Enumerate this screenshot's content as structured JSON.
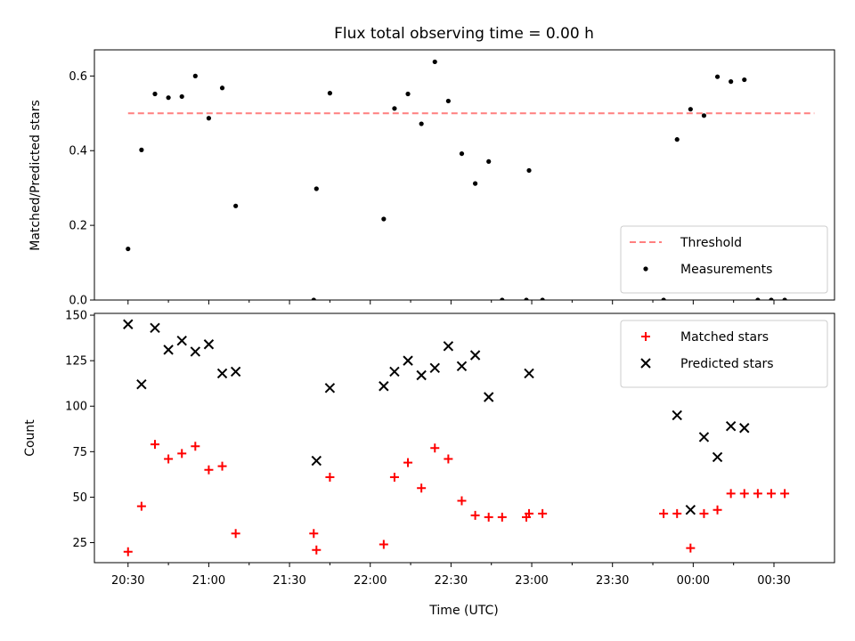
{
  "chart_data": {
    "type": "scatter",
    "title": "Flux total observing time = 0.00 h",
    "xlabel": "Time (UTC)",
    "x_ticks": [
      "20:30",
      "21:00",
      "21:30",
      "22:00",
      "22:30",
      "23:00",
      "23:30",
      "00:00",
      "00:30"
    ],
    "x_range_minutes_since_20_30": [
      -12.5,
      262.5
    ],
    "panels": [
      {
        "ylabel": "Matched/Predicted stars",
        "ylim": [
          0,
          0.67
        ],
        "y_ticks": [
          "0.0",
          "0.2",
          "0.4",
          "0.6"
        ],
        "legend_position": "lower-right",
        "threshold": {
          "name": "Threshold",
          "value": 0.5,
          "x_start": "20:30",
          "x_end": "00:45",
          "color": "#ff7f7f"
        },
        "series": [
          {
            "name": "Measurements",
            "marker": "dot",
            "color": "#000000",
            "points": [
              [
                "20:30",
                0.137
              ],
              [
                "20:35",
                0.402
              ],
              [
                "20:40",
                0.552
              ],
              [
                "20:45",
                0.542
              ],
              [
                "20:50",
                0.545
              ],
              [
                "20:55",
                0.6
              ],
              [
                "21:00",
                0.487
              ],
              [
                "21:05",
                0.568
              ],
              [
                "21:10",
                0.252
              ],
              [
                "21:39",
                0.0
              ],
              [
                "21:40",
                0.298
              ],
              [
                "21:45",
                0.554
              ],
              [
                "22:05",
                0.217
              ],
              [
                "22:09",
                0.513
              ],
              [
                "22:14",
                0.552
              ],
              [
                "22:19",
                0.472
              ],
              [
                "22:24",
                0.638
              ],
              [
                "22:29",
                0.533
              ],
              [
                "22:34",
                0.392
              ],
              [
                "22:39",
                0.312
              ],
              [
                "22:44",
                0.371
              ],
              [
                "22:49",
                0.0
              ],
              [
                "22:58",
                0.0
              ],
              [
                "22:59",
                0.347
              ],
              [
                "23:04",
                0.0
              ],
              [
                "23:49",
                0.0
              ],
              [
                "23:54",
                0.43
              ],
              [
                "23:59",
                0.511
              ],
              [
                "00:04",
                0.494
              ],
              [
                "00:09",
                0.598
              ],
              [
                "00:14",
                0.585
              ],
              [
                "00:19",
                0.59
              ],
              [
                "00:24",
                0.0
              ],
              [
                "00:29",
                0.0
              ],
              [
                "00:34",
                0.0
              ]
            ]
          }
        ]
      },
      {
        "ylabel": "Count",
        "ylim": [
          14,
          151
        ],
        "y_ticks": [
          "25",
          "50",
          "75",
          "100",
          "125",
          "150"
        ],
        "legend_position": "upper-right",
        "series": [
          {
            "name": "Matched stars",
            "marker": "plus",
            "color": "#ff0000",
            "points": [
              [
                "20:30",
                20
              ],
              [
                "20:35",
                45
              ],
              [
                "20:40",
                79
              ],
              [
                "20:45",
                71
              ],
              [
                "20:50",
                74
              ],
              [
                "20:55",
                78
              ],
              [
                "21:00",
                65
              ],
              [
                "21:05",
                67
              ],
              [
                "21:10",
                30
              ],
              [
                "21:39",
                30
              ],
              [
                "21:40",
                21
              ],
              [
                "21:45",
                61
              ],
              [
                "22:05",
                24
              ],
              [
                "22:09",
                61
              ],
              [
                "22:14",
                69
              ],
              [
                "22:19",
                55
              ],
              [
                "22:24",
                77
              ],
              [
                "22:29",
                71
              ],
              [
                "22:34",
                48
              ],
              [
                "22:39",
                40
              ],
              [
                "22:44",
                39
              ],
              [
                "22:49",
                39
              ],
              [
                "22:58",
                39
              ],
              [
                "22:59",
                41
              ],
              [
                "23:04",
                41
              ],
              [
                "23:49",
                41
              ],
              [
                "23:54",
                41
              ],
              [
                "23:59",
                22
              ],
              [
                "00:04",
                41
              ],
              [
                "00:09",
                43
              ],
              [
                "00:14",
                52
              ],
              [
                "00:19",
                52
              ],
              [
                "00:24",
                52
              ],
              [
                "00:29",
                52
              ],
              [
                "00:34",
                52
              ]
            ]
          },
          {
            "name": "Predicted stars",
            "marker": "x",
            "color": "#000000",
            "points": [
              [
                "20:30",
                145
              ],
              [
                "20:35",
                112
              ],
              [
                "20:40",
                143
              ],
              [
                "20:45",
                131
              ],
              [
                "20:50",
                136
              ],
              [
                "20:55",
                130
              ],
              [
                "21:00",
                134
              ],
              [
                "21:05",
                118
              ],
              [
                "21:10",
                119
              ],
              [
                "21:40",
                70
              ],
              [
                "21:45",
                110
              ],
              [
                "22:05",
                111
              ],
              [
                "22:09",
                119
              ],
              [
                "22:14",
                125
              ],
              [
                "22:19",
                117
              ],
              [
                "22:24",
                121
              ],
              [
                "22:29",
                133
              ],
              [
                "22:34",
                122
              ],
              [
                "22:39",
                128
              ],
              [
                "22:44",
                105
              ],
              [
                "22:59",
                118
              ],
              [
                "23:54",
                95
              ],
              [
                "23:59",
                43
              ],
              [
                "00:04",
                83
              ],
              [
                "00:09",
                72
              ],
              [
                "00:14",
                89
              ],
              [
                "00:19",
                88
              ]
            ]
          }
        ]
      }
    ]
  }
}
